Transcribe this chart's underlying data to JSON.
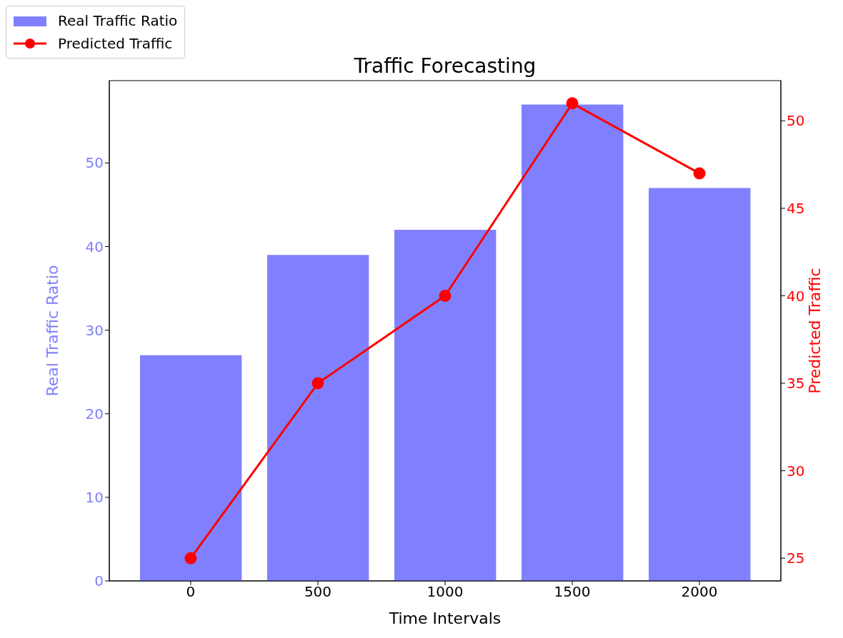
{
  "chart_data": {
    "type": "bar",
    "title": "Traffic Forecasting",
    "xlabel": "Time Intervals",
    "ylabel": "Real Traffic Ratio",
    "y2label": "Predicted Traffic",
    "x": [
      0,
      500,
      1000,
      1500,
      2000
    ],
    "series": [
      {
        "name": "Real Traffic Ratio",
        "color": "#8080ff",
        "values": [
          27,
          39,
          42,
          57,
          47
        ]
      },
      {
        "name": "Predicted Traffic",
        "type": "line",
        "axis": "y2",
        "color": "#ff0000",
        "marker": "circle",
        "values": [
          25,
          35,
          40,
          51,
          47
        ]
      }
    ],
    "xlim": [
      -320,
      2320
    ],
    "xticks": [
      0,
      500,
      1000,
      1500,
      2000
    ],
    "ylim": [
      0,
      59.85
    ],
    "yticks": [
      0,
      10,
      20,
      30,
      40,
      50
    ],
    "y2lim": [
      23.7,
      52.3
    ],
    "y2ticks": [
      25,
      30,
      35,
      40,
      45,
      50
    ],
    "grid": false,
    "legend": "top left"
  }
}
